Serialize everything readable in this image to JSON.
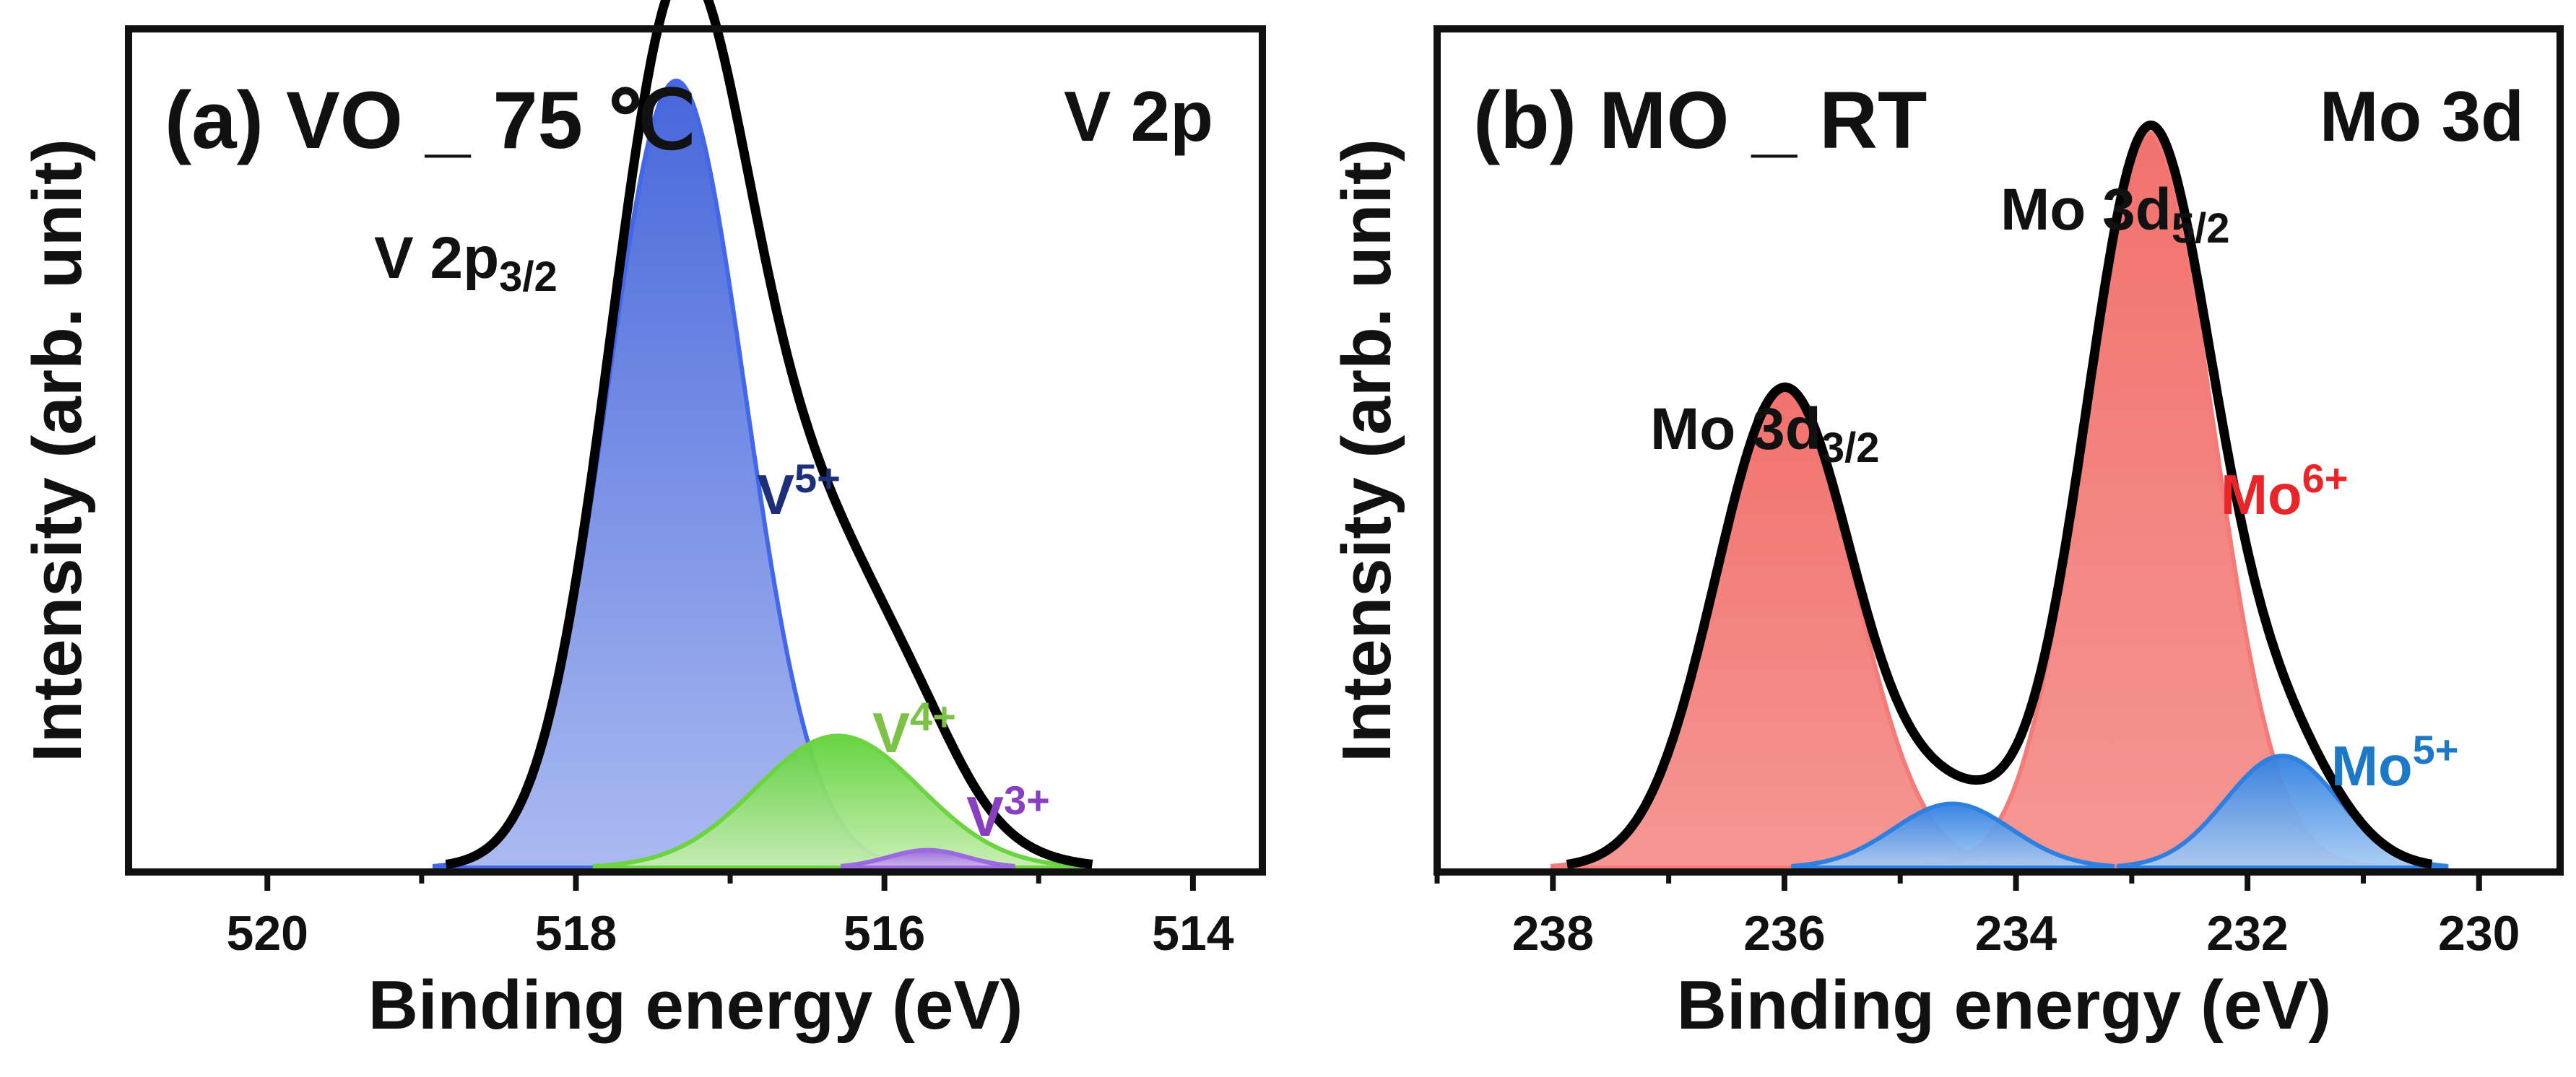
{
  "chart_data": [
    {
      "type": "area",
      "title": "(a) VO _ 75 ℃",
      "core_level": "V 2p",
      "xlabel": "Binding energy (eV)",
      "ylabel": "Intensity (arb. unit)",
      "xlim": [
        520.9,
        513.55
      ],
      "x_reversed": true,
      "ylim": [
        0,
        1.05
      ],
      "xticks": [
        520,
        518,
        516,
        514
      ],
      "xtick_labels": [
        "520",
        "518",
        "516",
        "514"
      ],
      "peak_labels": [
        {
          "name": "peak-v2p32",
          "main": "V 2p",
          "sub": "3/2",
          "x": 517.35,
          "y": 1.0
        }
      ],
      "series": [
        {
          "name": "V⁵⁺",
          "label_main": "V",
          "label_sup": "5+",
          "color": "#4f6fe0",
          "label_color": "#1c2f78",
          "center": 517.35,
          "height": 0.985,
          "fwhm": 1.05
        },
        {
          "name": "V⁴⁺",
          "label_main": "V",
          "label_sup": "4+",
          "color": "#6fd84a",
          "label_color": "#7cc246",
          "center": 516.3,
          "height": 0.165,
          "fwhm": 1.25
        },
        {
          "name": "V³⁺",
          "label_main": "V",
          "label_sup": "3+",
          "color": "#a77ae0",
          "label_color": "#8a3fc0",
          "center": 515.72,
          "height": 0.022,
          "fwhm": 0.6
        }
      ],
      "envelope": {
        "name": "Fitted envelope",
        "color": "#000000",
        "tail_center": 516.55,
        "tail_height": 0.24,
        "tail_fwhm": 1.5
      }
    },
    {
      "type": "area",
      "title": "(b) MO _ RT",
      "core_level": "Mo 3d",
      "xlabel": "Binding energy (eV)",
      "ylabel": "Intensity (arb. unit)",
      "xlim": [
        239.0,
        229.3
      ],
      "x_reversed": true,
      "ylim": [
        0,
        1.05
      ],
      "xticks": [
        238,
        236,
        234,
        232,
        230
      ],
      "xtick_labels": [
        "238",
        "236",
        "234",
        "232",
        "230"
      ],
      "peak_labels": [
        {
          "name": "peak-mo3d32",
          "main": "Mo 3d",
          "sub": "3/2",
          "x": 236.0,
          "y": 0.62
        },
        {
          "name": "peak-mo3d52",
          "main": "Mo 3d",
          "sub": "5/2",
          "x": 232.85,
          "y": 0.96
        }
      ],
      "series": [
        {
          "name": "Mo⁶⁺ (3d3/2)",
          "label_main": "Mo",
          "label_sup": "6+",
          "color": "#f2726e",
          "label_color": "#e8262a",
          "center": 236.0,
          "height": 0.6,
          "fwhm": 1.4,
          "show_label": false
        },
        {
          "name": "Mo⁶⁺",
          "label_main": "Mo",
          "label_sup": "6+",
          "color": "#f2726e",
          "label_color": "#e8262a",
          "center": 232.85,
          "height": 0.92,
          "fwhm": 1.3,
          "show_label": true
        },
        {
          "name": "Mo⁵⁺ (3d3/2)",
          "label_main": "Mo",
          "label_sup": "5+",
          "color": "#4a8fe6",
          "label_color": "#1e78c8",
          "center": 234.55,
          "height": 0.08,
          "fwhm": 1.2,
          "show_label": false
        },
        {
          "name": "Mo⁵⁺",
          "label_main": "Mo",
          "label_sup": "5+",
          "color": "#4a8fe6",
          "label_color": "#1e78c8",
          "center": 231.7,
          "height": 0.14,
          "fwhm": 1.15,
          "show_label": true
        }
      ],
      "envelope": {
        "name": "Fitted envelope",
        "color": "#000000"
      }
    }
  ]
}
